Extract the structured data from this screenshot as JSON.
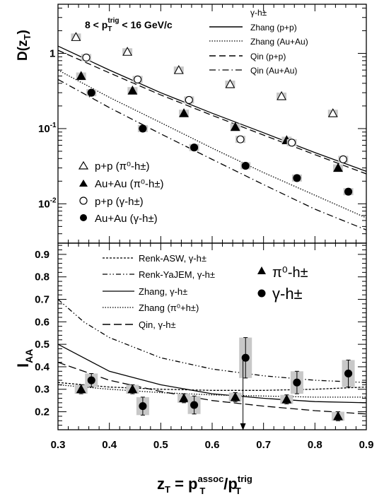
{
  "panels": {
    "top": {
      "ylabel_main": "D(z",
      "ylabel_sub": "T",
      "ylabel_close": ")",
      "condition_text": "8 < p",
      "condition_sub": "T",
      "condition_sup": "trig",
      "condition_tail": " < 16 GeV/c",
      "yticks": [
        "1",
        "10",
        "10"
      ],
      "yticks_exp": [
        "",
        "-1",
        "-2"
      ],
      "curve_legend_header": "γ-h±",
      "curve_legend": [
        "Zhang (p+p)",
        "Zhang (Au+Au)",
        "Qin (p+p)",
        "Qin (Au+Au)"
      ],
      "marker_legend": [
        "p+p (π⁰-h±)",
        "Au+Au (π⁰-h±)",
        "p+p (γ-h±)",
        "Au+Au (γ-h±)"
      ]
    },
    "bottom": {
      "ylabel_main": "I",
      "ylabel_sub": "AA",
      "yticks": [
        "0.2",
        "0.3",
        "0.4",
        "0.5",
        "0.6",
        "0.7",
        "0.8",
        "0.9"
      ],
      "curve_legend": [
        "Renk-ASW, γ-h±",
        "Renk-YaJEM, γ-h±",
        "Zhang, γ-h±",
        "Zhang (π⁰+h±)",
        "Qin, γ-h±"
      ],
      "marker_legend": [
        "π⁰-h±",
        "γ-h±"
      ]
    },
    "xticks": [
      "0.3",
      "0.4",
      "0.5",
      "0.6",
      "0.7",
      "0.8",
      "0.9"
    ],
    "xlabel": "z",
    "xlabel_sub": "T",
    "xlabel_eq": " = p",
    "xlabel_sup1": "assoc",
    "xlabel_sub2": "T",
    "xlabel_slash": "/p",
    "xlabel_sup2": "trig",
    "xlabel_sub3": "T"
  },
  "chart_data": [
    {
      "type": "scatter",
      "xlabel": "z_T = p_T^assoc/p_T^trig",
      "ylabel": "D(z_T)",
      "xlim": [
        0.3,
        0.9
      ],
      "ylim": [
        0.003,
        4.5
      ],
      "yscale": "log",
      "series": [
        {
          "name": "p+p (π⁰-h±)",
          "marker": "open-triangle",
          "x": [
            0.335,
            0.435,
            0.535,
            0.635,
            0.735,
            0.835
          ],
          "y": [
            1.65,
            1.05,
            0.6,
            0.39,
            0.27,
            0.16
          ]
        },
        {
          "name": "Au+Au (π⁰-h±)",
          "marker": "filled-triangle",
          "x": [
            0.345,
            0.445,
            0.545,
            0.645,
            0.745,
            0.845
          ],
          "y": [
            0.5,
            0.32,
            0.16,
            0.105,
            0.07,
            0.03
          ]
        },
        {
          "name": "p+p (γ-h±)",
          "marker": "open-circle",
          "x": [
            0.355,
            0.455,
            0.555,
            0.655,
            0.755,
            0.855
          ],
          "y": [
            0.88,
            0.45,
            0.24,
            0.072,
            0.065,
            0.039
          ]
        },
        {
          "name": "Au+Au (γ-h±)",
          "marker": "filled-circle",
          "x": [
            0.365,
            0.465,
            0.565,
            0.665,
            0.765,
            0.865
          ],
          "y": [
            0.3,
            0.1,
            0.056,
            0.032,
            0.022,
            0.0145
          ]
        },
        {
          "name": "Zhang (p+p)",
          "style": "solid",
          "x": [
            0.3,
            0.4,
            0.5,
            0.6,
            0.7,
            0.8,
            0.9
          ],
          "y": [
            1.25,
            0.6,
            0.3,
            0.16,
            0.088,
            0.048,
            0.027
          ]
        },
        {
          "name": "Zhang (Au+Au)",
          "style": "dotted",
          "x": [
            0.3,
            0.4,
            0.5,
            0.6,
            0.7,
            0.8,
            0.9
          ],
          "y": [
            0.6,
            0.26,
            0.12,
            0.055,
            0.026,
            0.013,
            0.0065
          ]
        },
        {
          "name": "Qin (p+p)",
          "style": "dashed",
          "x": [
            0.3,
            0.4,
            0.5,
            0.6,
            0.7,
            0.8,
            0.9
          ],
          "y": [
            1.1,
            0.55,
            0.28,
            0.15,
            0.082,
            0.045,
            0.025
          ]
        },
        {
          "name": "Qin (Au+Au)",
          "style": "dash-dot",
          "x": [
            0.3,
            0.4,
            0.5,
            0.6,
            0.7,
            0.8,
            0.9
          ],
          "y": [
            0.45,
            0.19,
            0.085,
            0.039,
            0.018,
            0.0085,
            0.0045
          ]
        }
      ]
    },
    {
      "type": "scatter",
      "xlabel": "z_T = p_T^assoc/p_T^trig",
      "ylabel": "I_AA",
      "xlim": [
        0.3,
        0.9
      ],
      "ylim": [
        0.12,
        0.95
      ],
      "series": [
        {
          "name": "π⁰-h±",
          "marker": "filled-triangle",
          "x": [
            0.345,
            0.445,
            0.545,
            0.645,
            0.745,
            0.845
          ],
          "y": [
            0.3,
            0.3,
            0.26,
            0.265,
            0.255,
            0.18
          ],
          "err": [
            0.02,
            0.02,
            0.02,
            0.02,
            0.02,
            0.02
          ]
        },
        {
          "name": "γ-h±",
          "marker": "filled-circle",
          "x": [
            0.365,
            0.465,
            0.565,
            0.665,
            0.765,
            0.865
          ],
          "y": [
            0.34,
            0.225,
            0.23,
            0.44,
            0.33,
            0.37
          ],
          "err": [
            0.03,
            0.04,
            0.04,
            0.09,
            0.05,
            0.06
          ]
        },
        {
          "name": "Renk-ASW, γ-h±",
          "style": "dashed-fine",
          "x": [
            0.3,
            0.4,
            0.5,
            0.6,
            0.7,
            0.8,
            0.9
          ],
          "y": [
            0.33,
            0.31,
            0.3,
            0.295,
            0.295,
            0.3,
            0.31
          ]
        },
        {
          "name": "Renk-YaJEM, γ-h±",
          "style": "dash-dot-dot",
          "x": [
            0.3,
            0.35,
            0.4,
            0.5,
            0.6,
            0.7,
            0.8,
            0.9
          ],
          "y": [
            0.7,
            0.6,
            0.53,
            0.44,
            0.39,
            0.36,
            0.34,
            0.33
          ]
        },
        {
          "name": "Zhang, γ-h±",
          "style": "solid",
          "x": [
            0.3,
            0.4,
            0.5,
            0.6,
            0.7,
            0.8,
            0.9
          ],
          "y": [
            0.5,
            0.38,
            0.32,
            0.28,
            0.26,
            0.245,
            0.24
          ]
        },
        {
          "name": "Zhang (π⁰+h±)",
          "style": "dotted",
          "x": [
            0.3,
            0.4,
            0.5,
            0.6,
            0.7,
            0.8,
            0.9
          ],
          "y": [
            0.32,
            0.3,
            0.285,
            0.275,
            0.27,
            0.265,
            0.265
          ]
        },
        {
          "name": "Qin, γ-h±",
          "style": "long-dashed",
          "x": [
            0.3,
            0.4,
            0.5,
            0.6,
            0.7,
            0.8,
            0.9
          ],
          "y": [
            0.42,
            0.34,
            0.29,
            0.25,
            0.225,
            0.205,
            0.19
          ]
        }
      ]
    }
  ]
}
